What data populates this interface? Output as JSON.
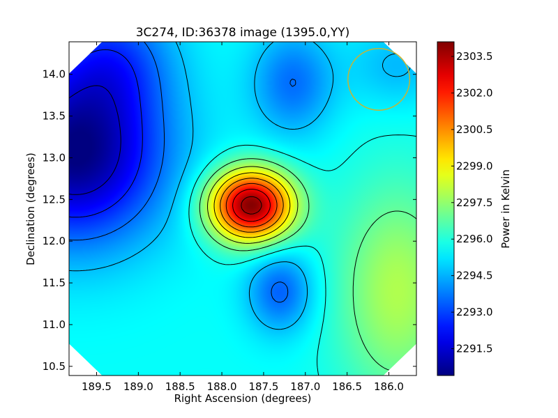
{
  "chart_data": {
    "type": "heatmap",
    "title": "3C274, ID:36378 image (1395.0,YY)",
    "xlabel": "Right Ascension (degrees)",
    "ylabel": "Declination (degrees)",
    "x_reversed": true,
    "xlim": [
      189.83,
      185.67
    ],
    "ylim": [
      10.39,
      14.39
    ],
    "x_ticks": [
      189.5,
      189.0,
      188.5,
      188.0,
      187.5,
      187.0,
      186.5,
      186.0
    ],
    "x_tick_labels": [
      "189.5",
      "189.0",
      "188.5",
      "188.0",
      "187.5",
      "187.0",
      "186.5",
      "186.0"
    ],
    "y_ticks": [
      10.5,
      11.0,
      11.5,
      12.0,
      12.5,
      13.0,
      13.5,
      14.0
    ],
    "y_tick_labels": [
      "10.5",
      "11.0",
      "11.5",
      "12.0",
      "12.5",
      "13.0",
      "13.5",
      "14.0"
    ],
    "colorbar": {
      "label": "Power in Kelvin",
      "colormap": "jet",
      "vmin": 2290.4,
      "vmax": 2304.1,
      "ticks": [
        2291.5,
        2293.0,
        2294.5,
        2296.0,
        2297.5,
        2299.0,
        2300.5,
        2302.0,
        2303.5
      ],
      "tick_labels": [
        "2291.5",
        "2293.0",
        "2294.5",
        "2296.0",
        "2297.5",
        "2299.0",
        "2300.5",
        "2302.0",
        "2303.5"
      ]
    },
    "field": {
      "background": 2295.6,
      "components": [
        {
          "ra": 187.65,
          "dec": 12.43,
          "amplitude": 8.5,
          "sigma_ra": 0.35,
          "sigma_dec": 0.3
        },
        {
          "ra": 189.75,
          "dec": 13.05,
          "amplitude": -5.2,
          "sigma_ra": 0.75,
          "sigma_dec": 0.75
        },
        {
          "ra": 189.3,
          "dec": 14.2,
          "amplitude": -2.0,
          "sigma_ra": 0.5,
          "sigma_dec": 0.5
        },
        {
          "ra": 187.15,
          "dec": 13.9,
          "amplitude": -2.0,
          "sigma_ra": 0.35,
          "sigma_dec": 0.45
        },
        {
          "ra": 187.3,
          "dec": 11.4,
          "amplitude": -2.2,
          "sigma_ra": 0.28,
          "sigma_dec": 0.35
        },
        {
          "ra": 185.9,
          "dec": 11.4,
          "amplitude": 2.3,
          "sigma_ra": 0.5,
          "sigma_dec": 0.9
        },
        {
          "ra": 185.9,
          "dec": 14.1,
          "amplitude": -1.0,
          "sigma_ra": 0.4,
          "sigma_dec": 0.35
        }
      ]
    },
    "contour_levels": [
      2291.4,
      2292.5,
      2293.6,
      2294.7,
      2295.8,
      2296.9,
      2298.0,
      2299.1,
      2300.2,
      2301.3,
      2302.4,
      2303.5
    ],
    "beam_circle": {
      "ra": 186.12,
      "dec": 13.94,
      "radius_dec": 0.37,
      "color": "#c8b432"
    },
    "background_color": "#ffffff"
  }
}
